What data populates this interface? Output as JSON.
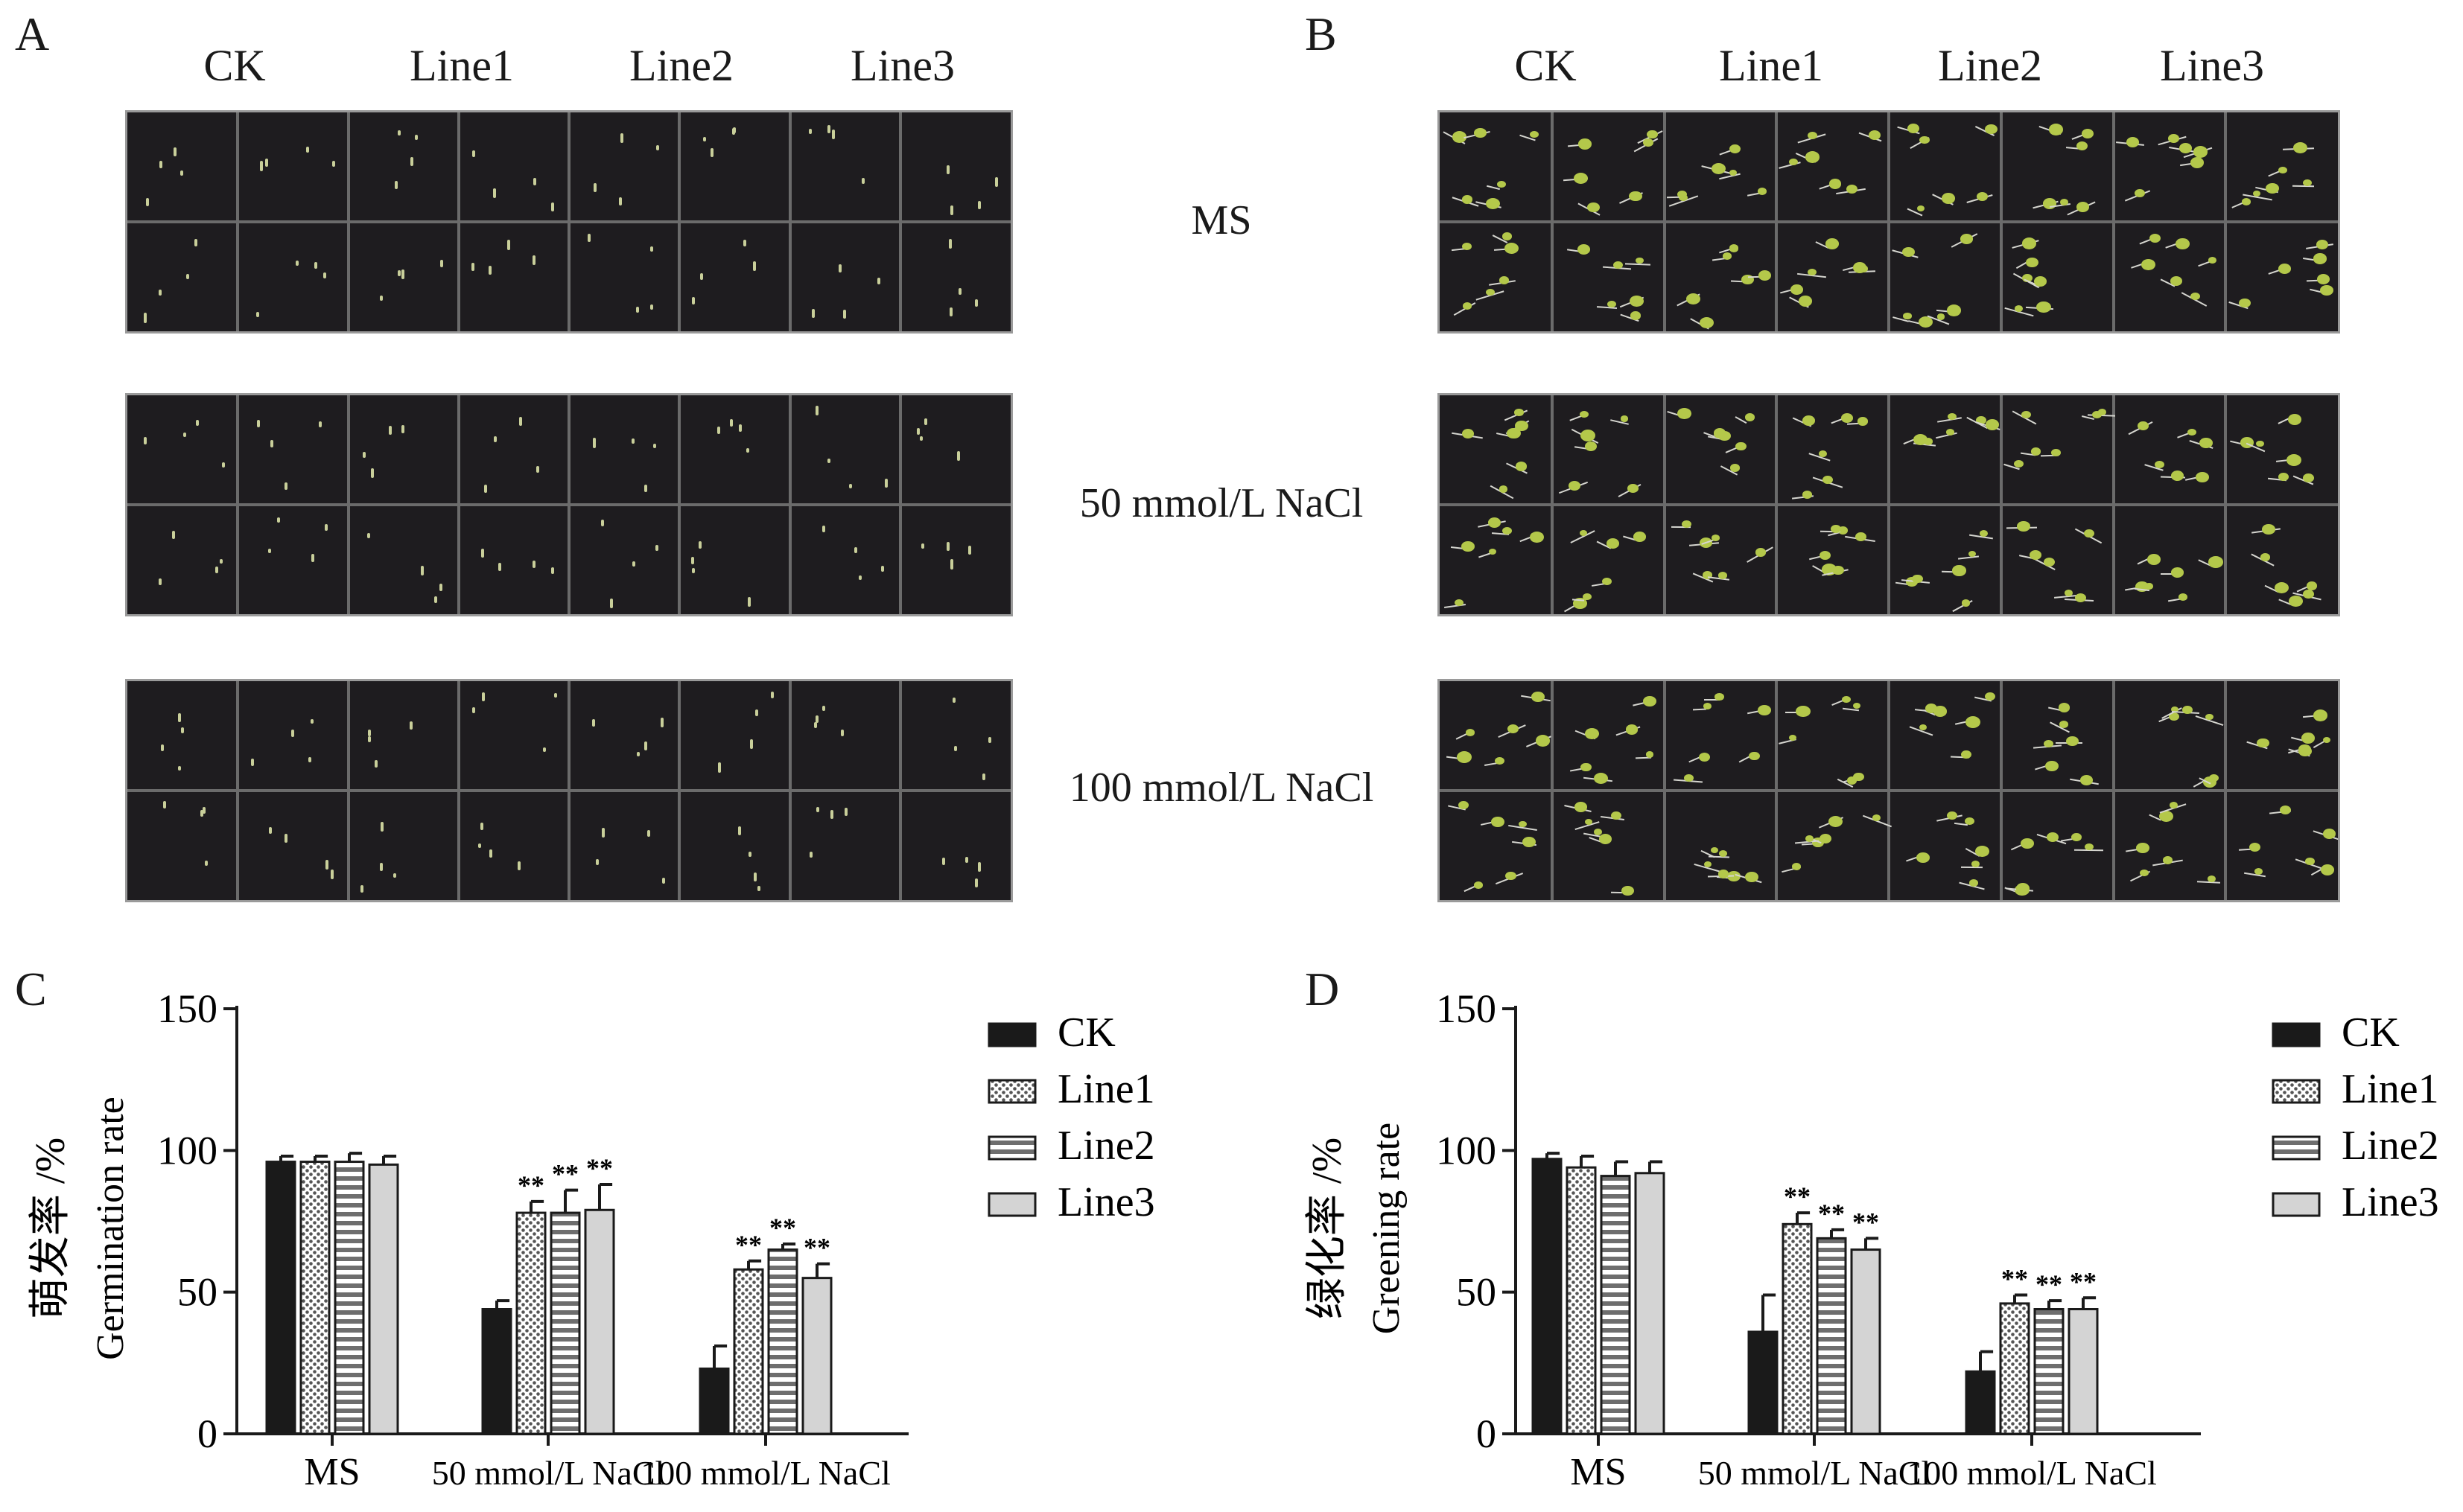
{
  "photo_panels": [
    {
      "letter": "A",
      "columns": [
        "CK",
        "Line1",
        "Line2",
        "Line3"
      ],
      "stage": "seeds"
    },
    {
      "letter": "B",
      "columns": [
        "CK",
        "Line1",
        "Line2",
        "Line3"
      ],
      "stage": "seedlings"
    }
  ],
  "conditions": [
    "MS",
    "50 mmol/L NaCl",
    "100 mmol/L NaCl"
  ],
  "chart_data": [
    {
      "letter": "C",
      "type": "bar",
      "ylabel_cn": "萌发率 /%",
      "ylabel_en": "Germination rate",
      "categories": [
        "MS",
        "50 mmol/L NaCl",
        "100 mmol/L NaCl"
      ],
      "ylim": [
        0,
        150
      ],
      "yticks": [
        "0",
        "50",
        "100",
        "150"
      ],
      "legend_position": "right",
      "series": [
        {
          "name": "CK",
          "values": [
            96,
            44,
            23
          ],
          "errors": [
            2,
            3,
            8
          ],
          "sig": [
            "",
            "",
            ""
          ]
        },
        {
          "name": "Line1",
          "values": [
            96,
            78,
            58
          ],
          "errors": [
            2,
            4,
            3
          ],
          "sig": [
            "",
            "**",
            "**"
          ]
        },
        {
          "name": "Line2",
          "values": [
            96,
            78,
            65
          ],
          "errors": [
            3,
            8,
            2
          ],
          "sig": [
            "",
            "**",
            "**"
          ]
        },
        {
          "name": "Line3",
          "values": [
            95,
            79,
            55
          ],
          "errors": [
            3,
            9,
            5
          ],
          "sig": [
            "",
            "**",
            "**"
          ]
        }
      ]
    },
    {
      "letter": "D",
      "type": "bar",
      "ylabel_cn": "绿化率 /%",
      "ylabel_en": "Greening rate",
      "categories": [
        "MS",
        "50 mmol/L NaCl",
        "100 mmol/L NaCl"
      ],
      "ylim": [
        0,
        150
      ],
      "yticks": [
        "0",
        "50",
        "100",
        "150"
      ],
      "legend_position": "right",
      "series": [
        {
          "name": "CK",
          "values": [
            97,
            36,
            22
          ],
          "errors": [
            2,
            13,
            7
          ],
          "sig": [
            "",
            "",
            ""
          ]
        },
        {
          "name": "Line1",
          "values": [
            94,
            74,
            46
          ],
          "errors": [
            4,
            4,
            3
          ],
          "sig": [
            "",
            "**",
            "**"
          ]
        },
        {
          "name": "Line2",
          "values": [
            91,
            69,
            44
          ],
          "errors": [
            5,
            3,
            3
          ],
          "sig": [
            "",
            "**",
            "**"
          ]
        },
        {
          "name": "Line3",
          "values": [
            92,
            65,
            44
          ],
          "errors": [
            4,
            4,
            4
          ],
          "sig": [
            "",
            "**",
            "**"
          ]
        }
      ]
    }
  ],
  "colors": {
    "CK": "#1a1a1a",
    "Line1": "#7a7a7a",
    "Line2": "#8c8c8c",
    "Line3": "#d4d4d4",
    "plate": "#1e1c1f"
  }
}
